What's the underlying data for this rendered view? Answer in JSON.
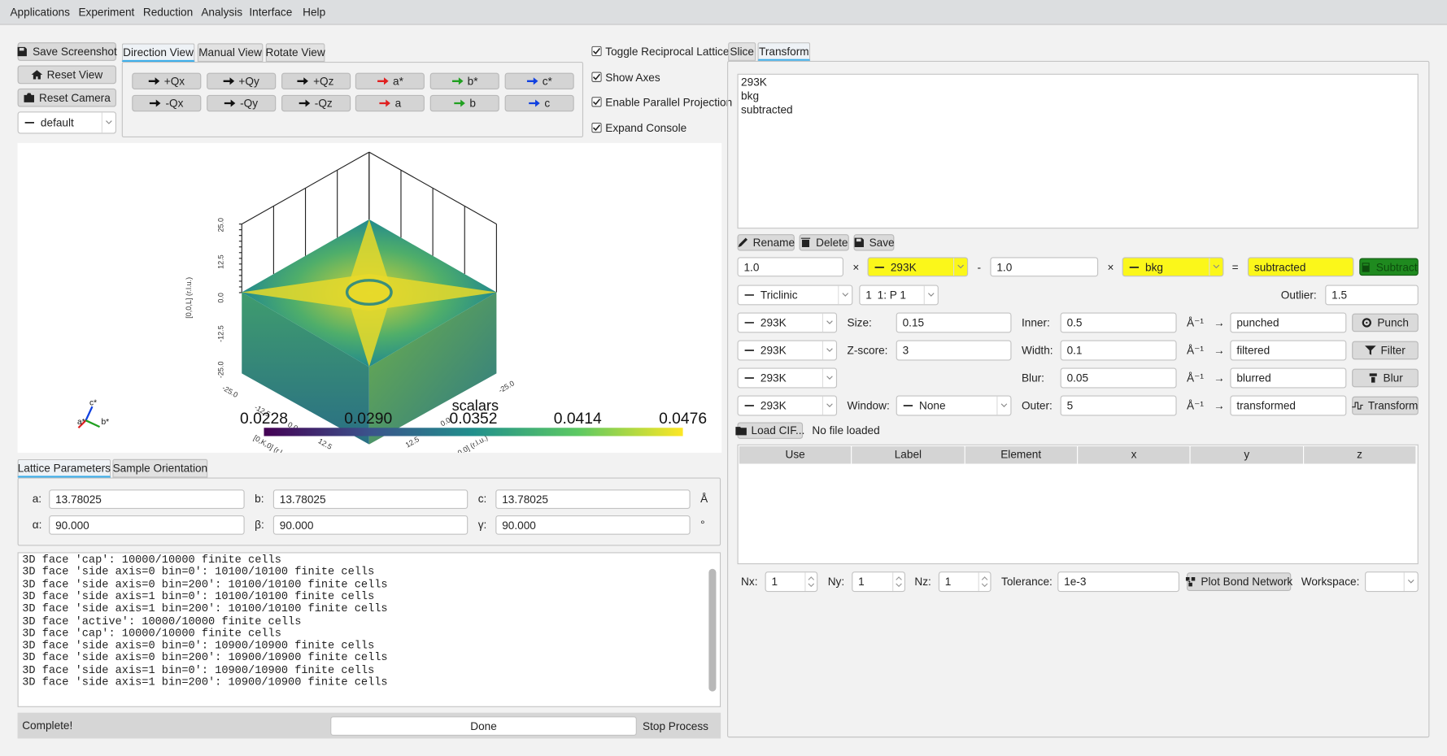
{
  "menu": [
    "Applications",
    "Experiment",
    "Reduction",
    "Analysis",
    "Interface",
    "Help"
  ],
  "toolbar": {
    "save_screenshot": "Save Screenshot",
    "reset_view": "Reset View",
    "reset_camera": "Reset Camera",
    "colormap": "default"
  },
  "view_tabs": [
    "Direction View",
    "Manual View",
    "Rotate View"
  ],
  "direction_buttons": [
    [
      "+Qx",
      "+Qy",
      "+Qz",
      "a*",
      "b*",
      "c*"
    ],
    [
      "-Qx",
      "-Qy",
      "-Qz",
      "a",
      "b",
      "c"
    ]
  ],
  "options": [
    "Toggle Reciprocal Lattice",
    "Show Axes",
    "Enable Parallel Projection",
    "Expand Console"
  ],
  "viewer": {
    "scalar_bar": {
      "title": "scalars",
      "ticks": [
        "0.0228",
        "0.0290",
        "0.0352",
        "0.0414",
        "0.0476"
      ]
    },
    "z_axis": {
      "title": "[0,0,L] (r.l.u.)",
      "ticks": [
        "25.0",
        "12.5",
        "0.0",
        "-12.5",
        "-25.0"
      ]
    },
    "y_axis": {
      "title": "[0,K,0] (r.l.u.)",
      "ticks": [
        "-25.0",
        "-12.5",
        "0.0",
        "12.5"
      ]
    },
    "x_axis": {
      "title": "[H,0,0] (r.l.u.)",
      "ticks": [
        "-25.0",
        "0.0",
        "12.5"
      ]
    },
    "orientation": [
      "c*",
      "a*",
      "b*"
    ]
  },
  "lattice_tabs": [
    "Lattice Parameters",
    "Sample Orientation"
  ],
  "lattice": [
    [
      "a:",
      "13.78025",
      "b:",
      "13.78025",
      "c:",
      "13.78025",
      "Å"
    ],
    [
      "α:",
      "90.000",
      "β:",
      "90.000",
      "γ:",
      "90.000",
      "°"
    ]
  ],
  "console": [
    "3D face 'cap': 10000/10000 finite cells",
    "3D face 'side axis=0 bin=0': 10100/10100 finite cells",
    "3D face 'side axis=0 bin=200': 10100/10100 finite cells",
    "3D face 'side axis=1 bin=0': 10100/10100 finite cells",
    "3D face 'side axis=1 bin=200': 10100/10100 finite cells",
    "3D face 'active': 10000/10000 finite cells",
    "3D face 'cap': 10000/10000 finite cells",
    "3D face 'side axis=0 bin=0': 10900/10900 finite cells",
    "3D face 'side axis=0 bin=200': 10900/10900 finite cells",
    "3D face 'side axis=1 bin=0': 10900/10900 finite cells",
    "3D face 'side axis=1 bin=200': 10900/10900 finite cells"
  ],
  "status": {
    "message": "Complete!",
    "progress": "Done",
    "stop": "Stop Process"
  },
  "right_tabs": [
    "Slice",
    "Transform"
  ],
  "datasets": [
    "293K",
    "bkg",
    "subtracted"
  ],
  "dataset_buttons": [
    "Rename",
    "Delete",
    "Save"
  ],
  "subtract": {
    "scale1": "1.0",
    "times1": "×",
    "dataset1": "293K",
    "minus": "-",
    "scale2": "1.0",
    "times2": "×",
    "dataset2": "bkg",
    "equals": "=",
    "output": "subtracted",
    "button": "Subtract"
  },
  "symmetry": {
    "system": "Triclinic",
    "number": "1",
    "space_group": "1: P 1",
    "outlier_label": "Outlier:",
    "outlier": "1.5"
  },
  "operations": [
    {
      "dataset": "293K",
      "param1_label": "Size:",
      "param1": "0.15",
      "param2_label": "Inner:",
      "param2": "0.5",
      "unit": "Å⁻¹",
      "arrow": "→",
      "output": "punched",
      "button": "Punch"
    },
    {
      "dataset": "293K",
      "param1_label": "Z-score:",
      "param1": "3",
      "param2_label": "Width:",
      "param2": "0.1",
      "unit": "Å⁻¹",
      "arrow": "→",
      "output": "filtered",
      "button": "Filter"
    },
    {
      "dataset": "293K",
      "param2_label": "Blur:",
      "param2": "0.05",
      "unit": "Å⁻¹",
      "arrow": "→",
      "output": "blurred",
      "button": "Blur"
    },
    {
      "dataset": "293K",
      "param1_label": "Window:",
      "param1": "None",
      "param2_label": "Outer:",
      "param2": "5",
      "unit": "Å⁻¹",
      "arrow": "→",
      "output": "transformed",
      "button": "Transform"
    }
  ],
  "cif": {
    "button": "Load CIF...",
    "status": "No file loaded"
  },
  "atom_table": {
    "columns": [
      "Use",
      "Label",
      "Element",
      "x",
      "y",
      "z"
    ]
  },
  "bond_network": {
    "nx_label": "Nx:",
    "nx": "1",
    "ny_label": "Ny:",
    "ny": "1",
    "nz_label": "Nz:",
    "nz": "1",
    "tolerance_label": "Tolerance:",
    "tolerance": "1e-3",
    "button": "Plot Bond Network",
    "workspace_label": "Workspace:"
  }
}
